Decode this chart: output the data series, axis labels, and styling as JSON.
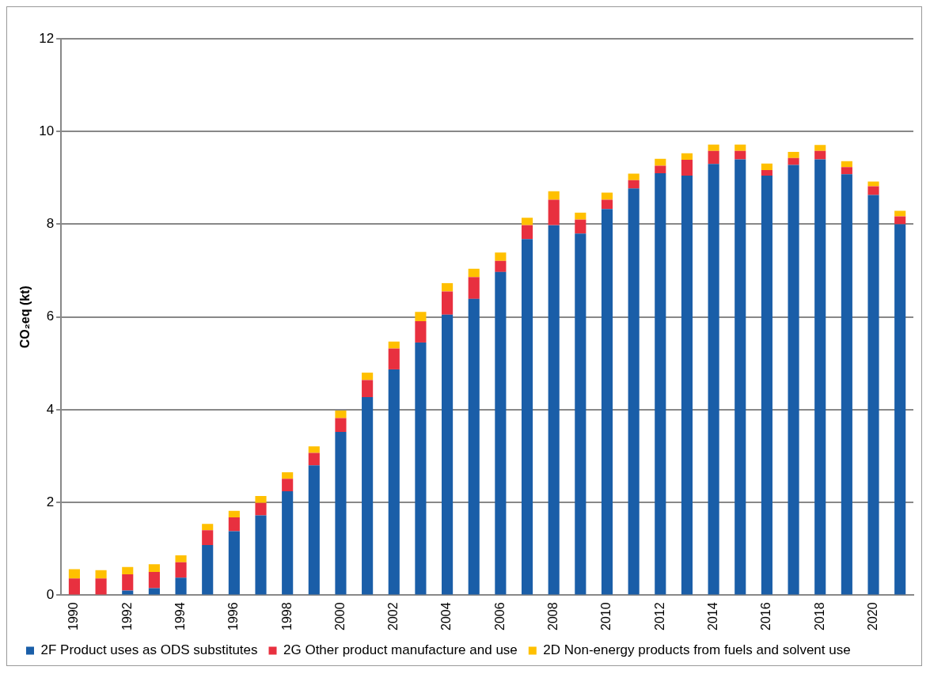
{
  "chart_data": {
    "type": "bar",
    "stacked": true,
    "ylabel": "CO₂eq (kt)",
    "categories": [
      "1990",
      null,
      "1992",
      null,
      "1994",
      null,
      "1996",
      null,
      "1998",
      null,
      "2000",
      null,
      "2002",
      null,
      "2004",
      null,
      "2006",
      null,
      "2008",
      null,
      "2010",
      null,
      "2012",
      null,
      "2014",
      null,
      "2016",
      null,
      "2018",
      null,
      "2020",
      null
    ],
    "series": [
      {
        "name": "2F Product uses as ODS substitutes",
        "color": "#1a5ea8",
        "values": [
          null,
          null,
          0.1,
          0.15,
          0.38,
          1.08,
          1.38,
          1.72,
          2.24,
          2.8,
          3.52,
          4.27,
          4.87,
          5.45,
          6.05,
          6.39,
          6.97,
          7.68,
          7.98,
          7.8,
          8.33,
          8.77,
          9.1,
          9.05,
          9.3,
          9.4,
          9.05,
          9.28,
          9.4,
          9.08,
          8.63,
          8.0
        ]
      },
      {
        "name": "2G Other product manufacture and use",
        "color": "#e8303f",
        "values": [
          0.36,
          0.36,
          0.35,
          0.35,
          0.33,
          0.32,
          0.3,
          0.27,
          0.27,
          0.27,
          0.3,
          0.37,
          0.45,
          0.46,
          0.5,
          0.47,
          0.24,
          0.3,
          0.55,
          0.3,
          0.2,
          0.18,
          0.16,
          0.34,
          0.28,
          0.18,
          0.12,
          0.15,
          0.18,
          0.15,
          0.19,
          0.17
        ]
      },
      {
        "name": "2D Non-energy products from fuels and solvent use",
        "color": "#ffc000",
        "values": [
          0.2,
          0.18,
          0.16,
          0.17,
          0.15,
          0.14,
          0.14,
          0.15,
          0.14,
          0.14,
          0.16,
          0.16,
          0.15,
          0.2,
          0.18,
          0.18,
          0.18,
          0.16,
          0.18,
          0.15,
          0.15,
          0.14,
          0.15,
          0.14,
          0.14,
          0.14,
          0.14,
          0.13,
          0.13,
          0.13,
          0.1,
          0.12
        ]
      }
    ],
    "ylim": [
      0,
      12
    ],
    "yticks": [
      0,
      2,
      4,
      6,
      8,
      10,
      12
    ],
    "grid": "y",
    "legend": "bottom"
  }
}
